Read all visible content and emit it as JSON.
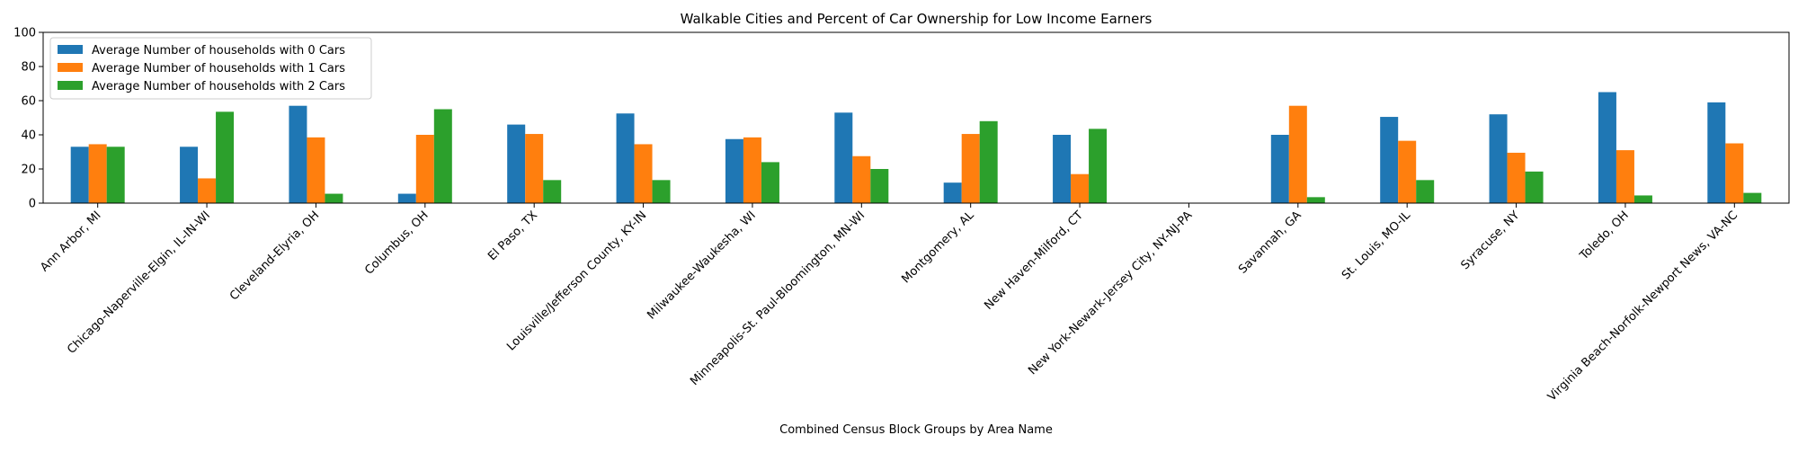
{
  "chart_data": {
    "type": "bar",
    "title": "Walkable Cities and Percent of Car Ownership for Low Income Earners",
    "xlabel": "Combined Census Block Groups by Area Name",
    "ylabel": "",
    "ylim": [
      0,
      100
    ],
    "yticks": [
      "0",
      "20",
      "40",
      "60",
      "80",
      "100"
    ],
    "legend_position": "top-left",
    "grid": false,
    "categories": [
      "Ann Arbor, MI",
      "Chicago-Naperville-Elgin, IL-IN-WI",
      "Cleveland-Elyria, OH",
      "Columbus, OH",
      "El Paso, TX",
      "Louisville/Jefferson County, KY-IN",
      "Milwaukee-Waukesha, WI",
      "Minneapolis-St. Paul-Bloomington, MN-WI",
      "Montgomery, AL",
      "New Haven-Milford, CT",
      "New York-Newark-Jersey City, NY-NJ-PA",
      "Savannah, GA",
      "St. Louis, MO-IL",
      "Syracuse, NY",
      "Toledo, OH",
      "Virginia Beach-Norfolk-Newport News, VA-NC"
    ],
    "series": [
      {
        "name": "Average Number of households with 0 Cars",
        "color": "#1f77b4",
        "values": [
          33,
          33,
          57,
          5.5,
          46,
          52.5,
          37.5,
          53,
          12,
          40,
          0,
          40,
          50.5,
          52,
          65,
          59
        ]
      },
      {
        "name": "Average Number of households with 1 Cars",
        "color": "#ff7f0e",
        "values": [
          34.5,
          14.5,
          38.5,
          40,
          40.5,
          34.5,
          38.5,
          27.5,
          40.5,
          17,
          0,
          57,
          36.5,
          29.5,
          31,
          35
        ]
      },
      {
        "name": "Average Number of households with 2 Cars",
        "color": "#2ca02c",
        "values": [
          33,
          53.5,
          5.5,
          55,
          13.5,
          13.5,
          24,
          20,
          48,
          43.5,
          0,
          3.5,
          13.5,
          18.5,
          4.5,
          6
        ]
      }
    ]
  }
}
